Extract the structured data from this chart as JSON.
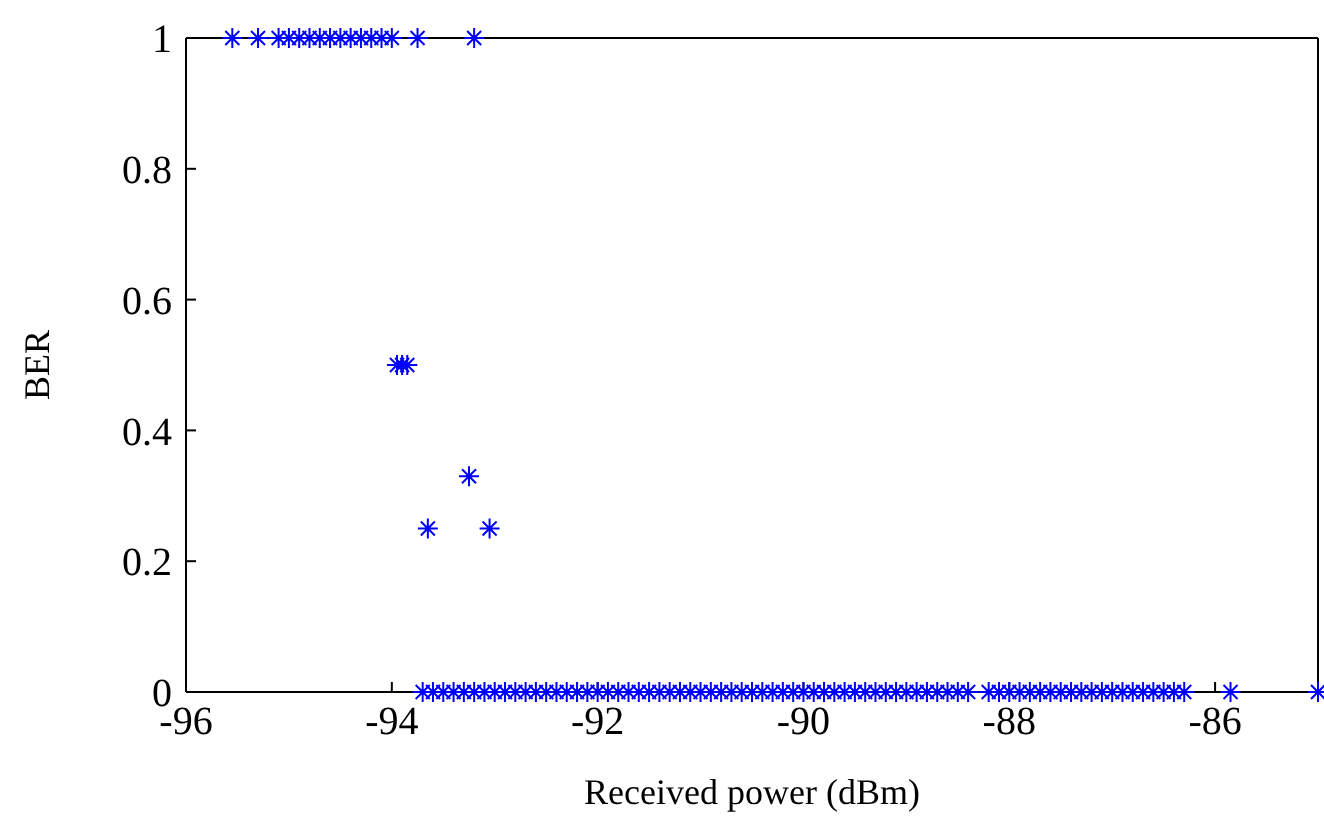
{
  "chart_data": {
    "type": "scatter",
    "xlabel": "Received power (dBm)",
    "ylabel": "BER",
    "xlim": [
      -96,
      -85
    ],
    "xticks": [
      -96,
      -94,
      -92,
      -90,
      -88,
      -86
    ],
    "ylim": [
      0,
      1
    ],
    "yticks": [
      0,
      0.2,
      0.4,
      0.6,
      0.8,
      1
    ],
    "marker": "cross",
    "series": [
      {
        "color": "#0000ff",
        "x": [
          -95.55,
          -95.3,
          -95.1,
          -95.0,
          -94.9,
          -94.8,
          -94.7,
          -94.6,
          -94.5,
          -94.4,
          -94.3,
          -94.2,
          -94.1,
          -94.0,
          -93.75,
          -93.2,
          -93.95,
          -93.9,
          -93.85,
          -93.25,
          -93.65,
          -93.05,
          -93.7,
          -93.6,
          -93.5,
          -93.4,
          -93.3,
          -93.2,
          -93.1,
          -93.0,
          -92.9,
          -92.8,
          -92.7,
          -92.6,
          -92.5,
          -92.4,
          -92.3,
          -92.2,
          -92.1,
          -92.0,
          -91.9,
          -91.8,
          -91.7,
          -91.6,
          -91.5,
          -91.4,
          -91.3,
          -91.2,
          -91.1,
          -91.0,
          -90.9,
          -90.8,
          -90.7,
          -90.6,
          -90.5,
          -90.4,
          -90.3,
          -90.2,
          -90.1,
          -90.0,
          -89.9,
          -89.8,
          -89.7,
          -89.6,
          -89.5,
          -89.4,
          -89.3,
          -89.2,
          -89.1,
          -89.0,
          -88.9,
          -88.8,
          -88.7,
          -88.6,
          -88.5,
          -88.4,
          -88.2,
          -88.1,
          -88.0,
          -87.9,
          -87.8,
          -87.7,
          -87.6,
          -87.5,
          -87.4,
          -87.3,
          -87.2,
          -87.1,
          -87.0,
          -86.9,
          -86.8,
          -86.7,
          -86.6,
          -86.5,
          -86.4,
          -86.3,
          -85.85,
          -85.0
        ],
        "values": [
          1,
          1,
          1,
          1,
          1,
          1,
          1,
          1,
          1,
          1,
          1,
          1,
          1,
          1,
          1,
          1,
          0.5,
          0.5,
          0.5,
          0.33,
          0.25,
          0.25,
          0,
          0,
          0,
          0,
          0,
          0,
          0,
          0,
          0,
          0,
          0,
          0,
          0,
          0,
          0,
          0,
          0,
          0,
          0,
          0,
          0,
          0,
          0,
          0,
          0,
          0,
          0,
          0,
          0,
          0,
          0,
          0,
          0,
          0,
          0,
          0,
          0,
          0,
          0,
          0,
          0,
          0,
          0,
          0,
          0,
          0,
          0,
          0,
          0,
          0,
          0,
          0,
          0,
          0,
          0,
          0,
          0,
          0,
          0,
          0,
          0,
          0,
          0,
          0,
          0,
          0,
          0,
          0,
          0,
          0,
          0,
          0,
          0,
          0,
          0,
          0
        ]
      }
    ]
  }
}
